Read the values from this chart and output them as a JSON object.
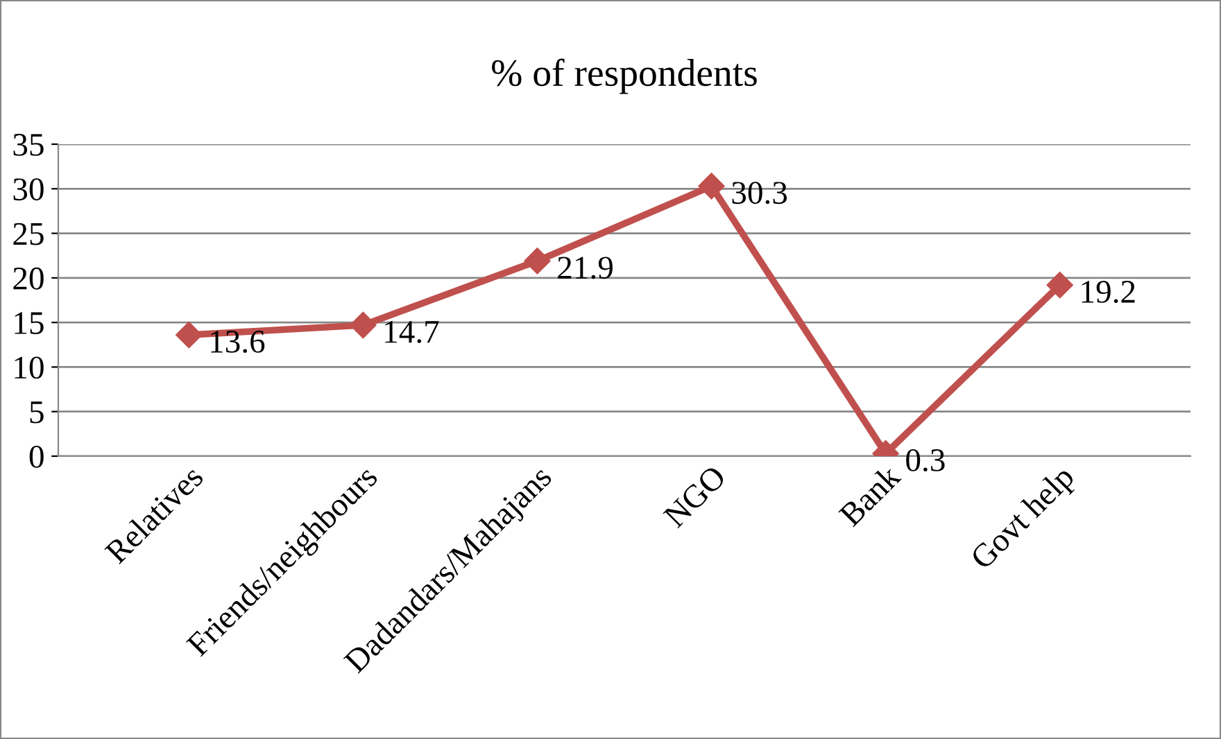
{
  "chart_data": {
    "type": "line",
    "title": "% of respondents",
    "categories": [
      "Relatives",
      "Friends/neighbours",
      "Dadandars/Mahajans",
      "NGO",
      "Bank",
      "Govt help"
    ],
    "series": [
      {
        "color": "#c0504d",
        "values": [
          13.6,
          14.7,
          21.9,
          30.3,
          0.3,
          19.2
        ]
      }
    ],
    "ylim": [
      0,
      35
    ],
    "yticks": [
      0,
      5,
      10,
      15,
      20,
      25,
      30,
      35
    ],
    "grid": "y",
    "marker": "diamond",
    "line_style": "solid",
    "data_labels": true
  }
}
